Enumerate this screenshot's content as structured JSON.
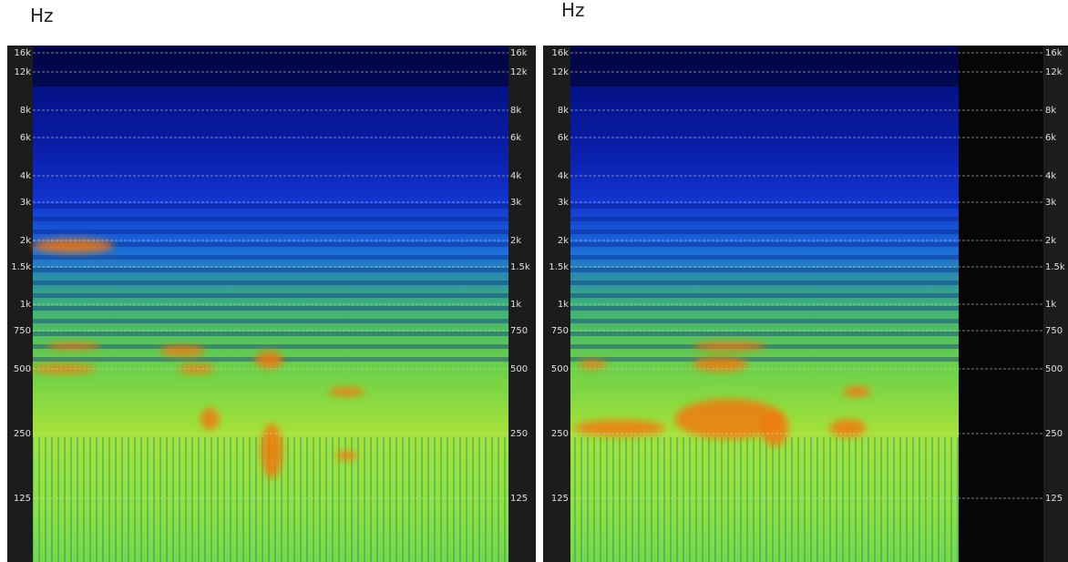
{
  "panels": [
    {
      "unit": "Hz",
      "ticks": [
        "16k",
        "12k",
        "8k",
        "6k",
        "4k",
        "3k",
        "2k",
        "1.5k",
        "1k",
        "750",
        "500",
        "250",
        "125"
      ]
    },
    {
      "unit": "Hz",
      "ticks": [
        "16k",
        "12k",
        "8k",
        "6k",
        "4k",
        "3k",
        "2k",
        "1.5k",
        "1k",
        "750",
        "500",
        "250",
        "125"
      ]
    }
  ]
}
